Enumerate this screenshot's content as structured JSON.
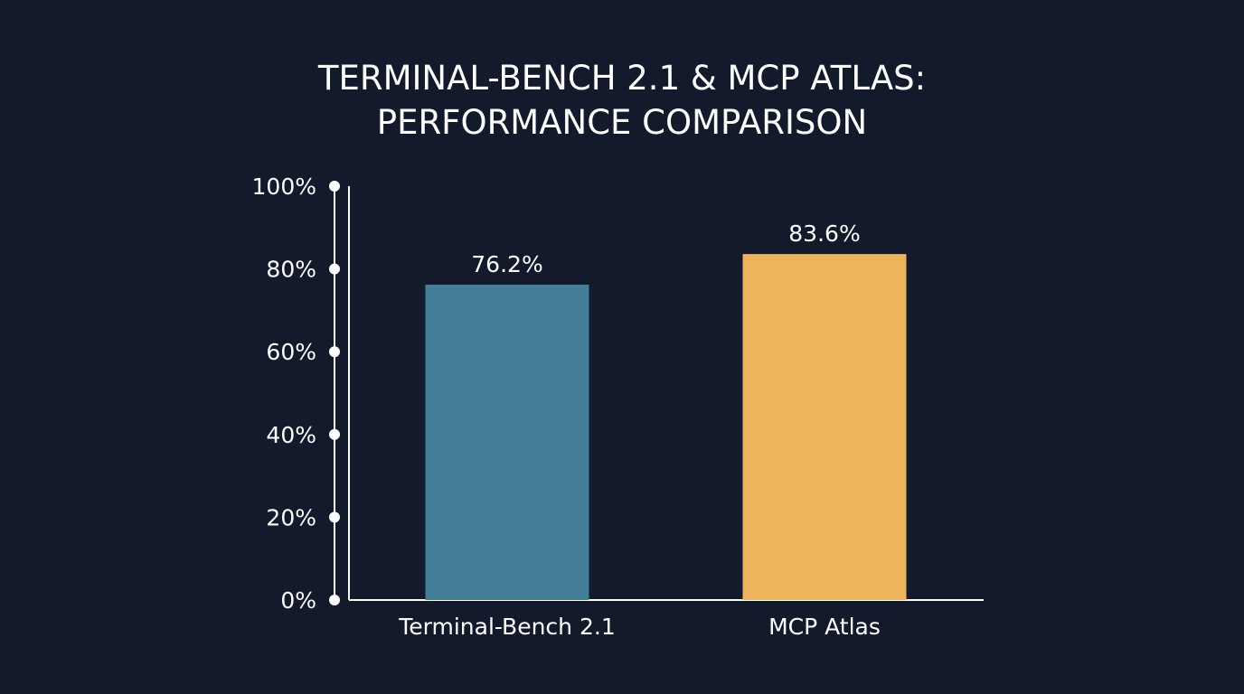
{
  "colors": {
    "background": "#121a2c",
    "axis": "#ffffff",
    "text": "#ffffff"
  },
  "chart_data": {
    "type": "bar",
    "title_lines": [
      "TERMINAL-BENCH 2.1 & MCP ATLAS:",
      "PERFORMANCE COMPARISON"
    ],
    "categories": [
      "Terminal-Bench 2.1",
      "MCP Atlas"
    ],
    "values": [
      76.2,
      83.6
    ],
    "value_labels": [
      "76.2%",
      "83.6%"
    ],
    "bar_colors": [
      "#447f98",
      "#eeb45b"
    ],
    "yticks": [
      0,
      20,
      40,
      60,
      80,
      100
    ],
    "ytick_labels": [
      "0%",
      "20%",
      "40%",
      "60%",
      "80%",
      "100%"
    ],
    "ylim": [
      0,
      100
    ],
    "xlabel": "",
    "ylabel": "",
    "grid": false,
    "legend": "none"
  }
}
